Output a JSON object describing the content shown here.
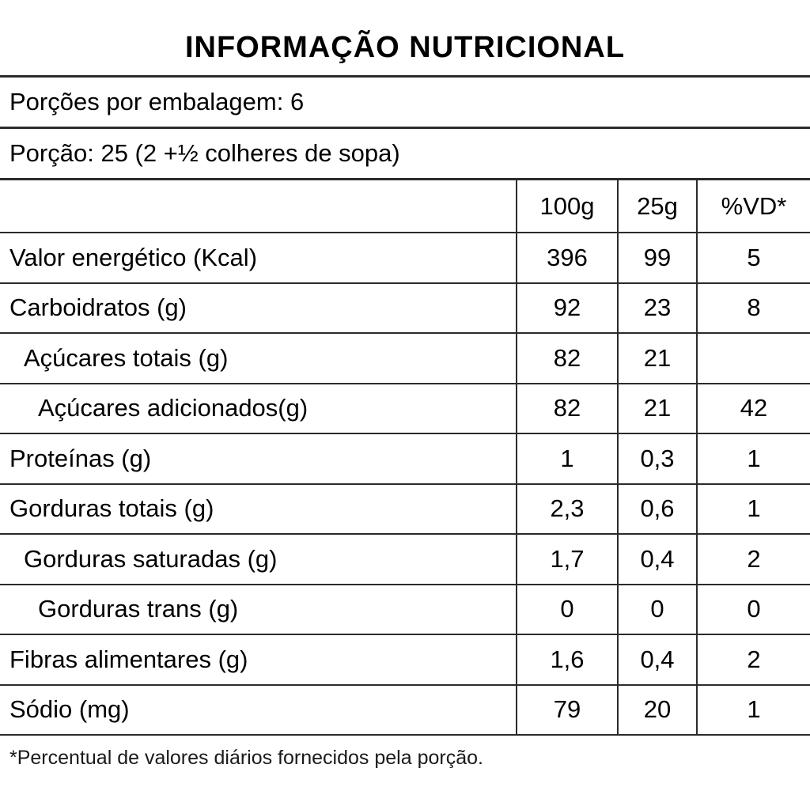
{
  "title": "INFORMAÇÃO NUTRICIONAL",
  "servings": {
    "per_package": "Porções por embalagem: 6",
    "portion": "Porção: 25 (2 +½ colheres de sopa)"
  },
  "table": {
    "columns": [
      "100g",
      "25g",
      "%VD*"
    ],
    "rows": [
      {
        "label": "Valor energético (Kcal)",
        "indent": 0,
        "v100": "396",
        "v25": "99",
        "vd": "5"
      },
      {
        "label": "Carboidratos (g)",
        "indent": 0,
        "v100": "92",
        "v25": "23",
        "vd": "8"
      },
      {
        "label": "Açúcares totais (g)",
        "indent": 1,
        "v100": "82",
        "v25": "21",
        "vd": ""
      },
      {
        "label": "Açúcares adicionados(g)",
        "indent": 2,
        "v100": "82",
        "v25": "21",
        "vd": "42"
      },
      {
        "label": "Proteínas (g)",
        "indent": 0,
        "v100": "1",
        "v25": "0,3",
        "vd": "1"
      },
      {
        "label": "Gorduras totais (g)",
        "indent": 0,
        "v100": "2,3",
        "v25": "0,6",
        "vd": "1"
      },
      {
        "label": "Gorduras saturadas (g)",
        "indent": 1,
        "v100": "1,7",
        "v25": "0,4",
        "vd": "2"
      },
      {
        "label": "Gorduras trans (g)",
        "indent": 2,
        "v100": "0",
        "v25": "0",
        "vd": "0"
      },
      {
        "label": "Fibras alimentares (g)",
        "indent": 0,
        "v100": "1,6",
        "v25": "0,4",
        "vd": "2"
      },
      {
        "label": "Sódio (mg)",
        "indent": 0,
        "v100": "79",
        "v25": "20",
        "vd": "1"
      }
    ]
  },
  "footnote": "*Percentual de valores diários fornecidos pela porção.",
  "colors": {
    "background": "#ffffff",
    "text": "#000000",
    "rule": "#2b2b2b"
  }
}
